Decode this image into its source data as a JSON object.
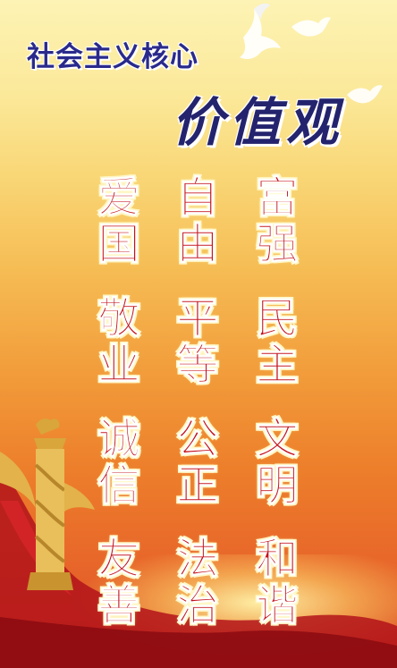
{
  "header": {
    "title_main": "社会主义核心",
    "title_script": "价值观"
  },
  "values": {
    "columns": [
      [
        "爱国",
        "敬业",
        "诚信",
        "友善"
      ],
      [
        "自由",
        "平等",
        "公正",
        "法治"
      ],
      [
        "富强",
        "民主",
        "文明",
        "和谐"
      ]
    ]
  },
  "colors": {
    "title_blue": "#2a2a8c",
    "value_red": "#c4121a",
    "background_top": "#fdf3b4",
    "background_bottom": "#d94a22"
  },
  "icons": [
    "dove-icon",
    "huabiao-pillar-icon",
    "red-ribbon-icon"
  ]
}
